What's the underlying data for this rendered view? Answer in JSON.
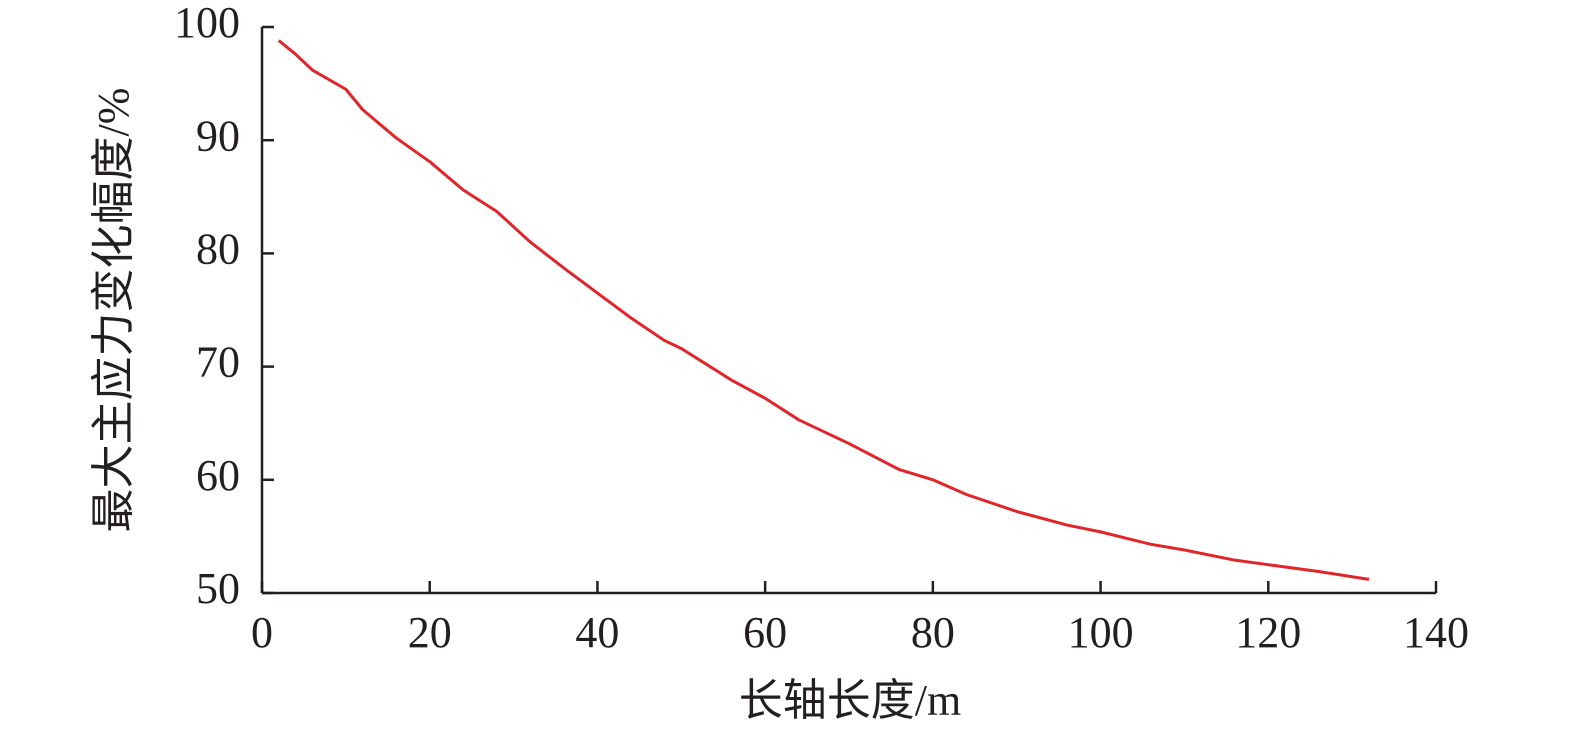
{
  "chart_data": {
    "type": "line",
    "x_label": "长轴长度/m",
    "y_label": "最大主应力变化幅度/%",
    "xlim": [
      0,
      140
    ],
    "xticks": [
      0,
      20,
      40,
      60,
      80,
      100,
      120,
      140
    ],
    "ylim": [
      50,
      100
    ],
    "yticks": [
      50,
      60,
      70,
      80,
      90,
      100
    ],
    "grid": false,
    "x": [
      2,
      4,
      6,
      10,
      12,
      16,
      20,
      24,
      28,
      32,
      36,
      40,
      44,
      48,
      50,
      56,
      60,
      64,
      70,
      76,
      80,
      84,
      90,
      96,
      100,
      106,
      110,
      116,
      120,
      126,
      132
    ],
    "series": [
      {
        "color": "#e0262b",
        "values": [
          98.8,
          97.6,
          96.2,
          94.5,
          92.7,
          90.2,
          88.1,
          85.6,
          83.7,
          81.0,
          78.7,
          76.5,
          74.3,
          72.3,
          71.6,
          68.8,
          67.2,
          65.3,
          63.2,
          60.9,
          60.0,
          58.7,
          57.2,
          56.0,
          55.4,
          54.3,
          53.8,
          52.9,
          52.5,
          51.9,
          51.2
        ]
      }
    ]
  }
}
